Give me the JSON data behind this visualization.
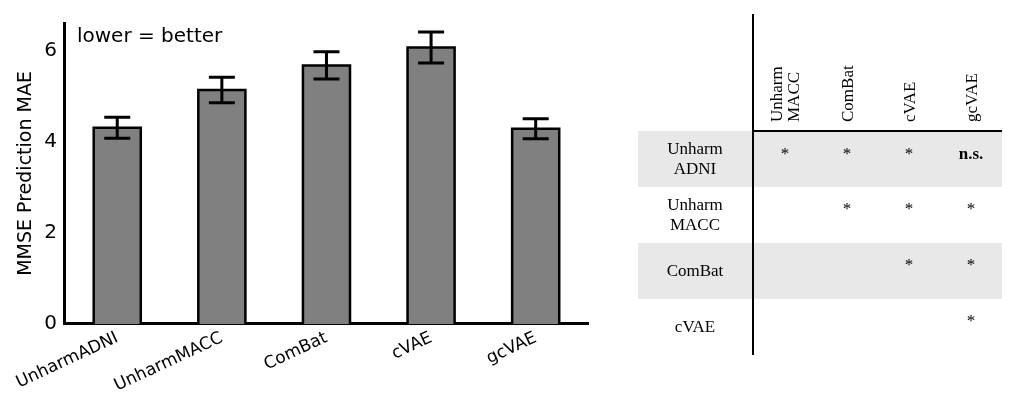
{
  "chart_data": [
    {
      "type": "bar",
      "ylabel": "MMSE Prediction MAE",
      "annotations": [
        "lower = better"
      ],
      "categories": [
        "UnharmADNI",
        "UnharmMACC",
        "ComBat",
        "cVAE",
        "gcVAE"
      ],
      "values": [
        4.3,
        5.13,
        5.67,
        6.06,
        4.28
      ],
      "errors": [
        0.23,
        0.28,
        0.3,
        0.34,
        0.22
      ],
      "color": "#808080",
      "ylim": [
        0,
        6.6
      ],
      "yticks": [
        0,
        2,
        4,
        6
      ],
      "grid": false,
      "legend": false
    },
    {
      "type": "heatmap",
      "categories": [
        "Unharm MACC",
        "ComBat",
        "cVAE",
        "gcVAE"
      ],
      "y_categories": [
        "Unharm ADNI",
        "Unharm MACC",
        "ComBat",
        "cVAE"
      ],
      "cells": [
        [
          null,
          null,
          null,
          null
        ],
        [
          null,
          null,
          null,
          null
        ],
        [
          null,
          null,
          null,
          null
        ],
        [
          null,
          null,
          null,
          null
        ]
      ],
      "cell_labels": [
        [
          "*",
          "*",
          "*",
          "n.s."
        ],
        [
          null,
          "*",
          "*",
          "*"
        ],
        [
          null,
          null,
          "*",
          "*"
        ],
        [
          null,
          null,
          null,
          "*"
        ]
      ]
    }
  ]
}
